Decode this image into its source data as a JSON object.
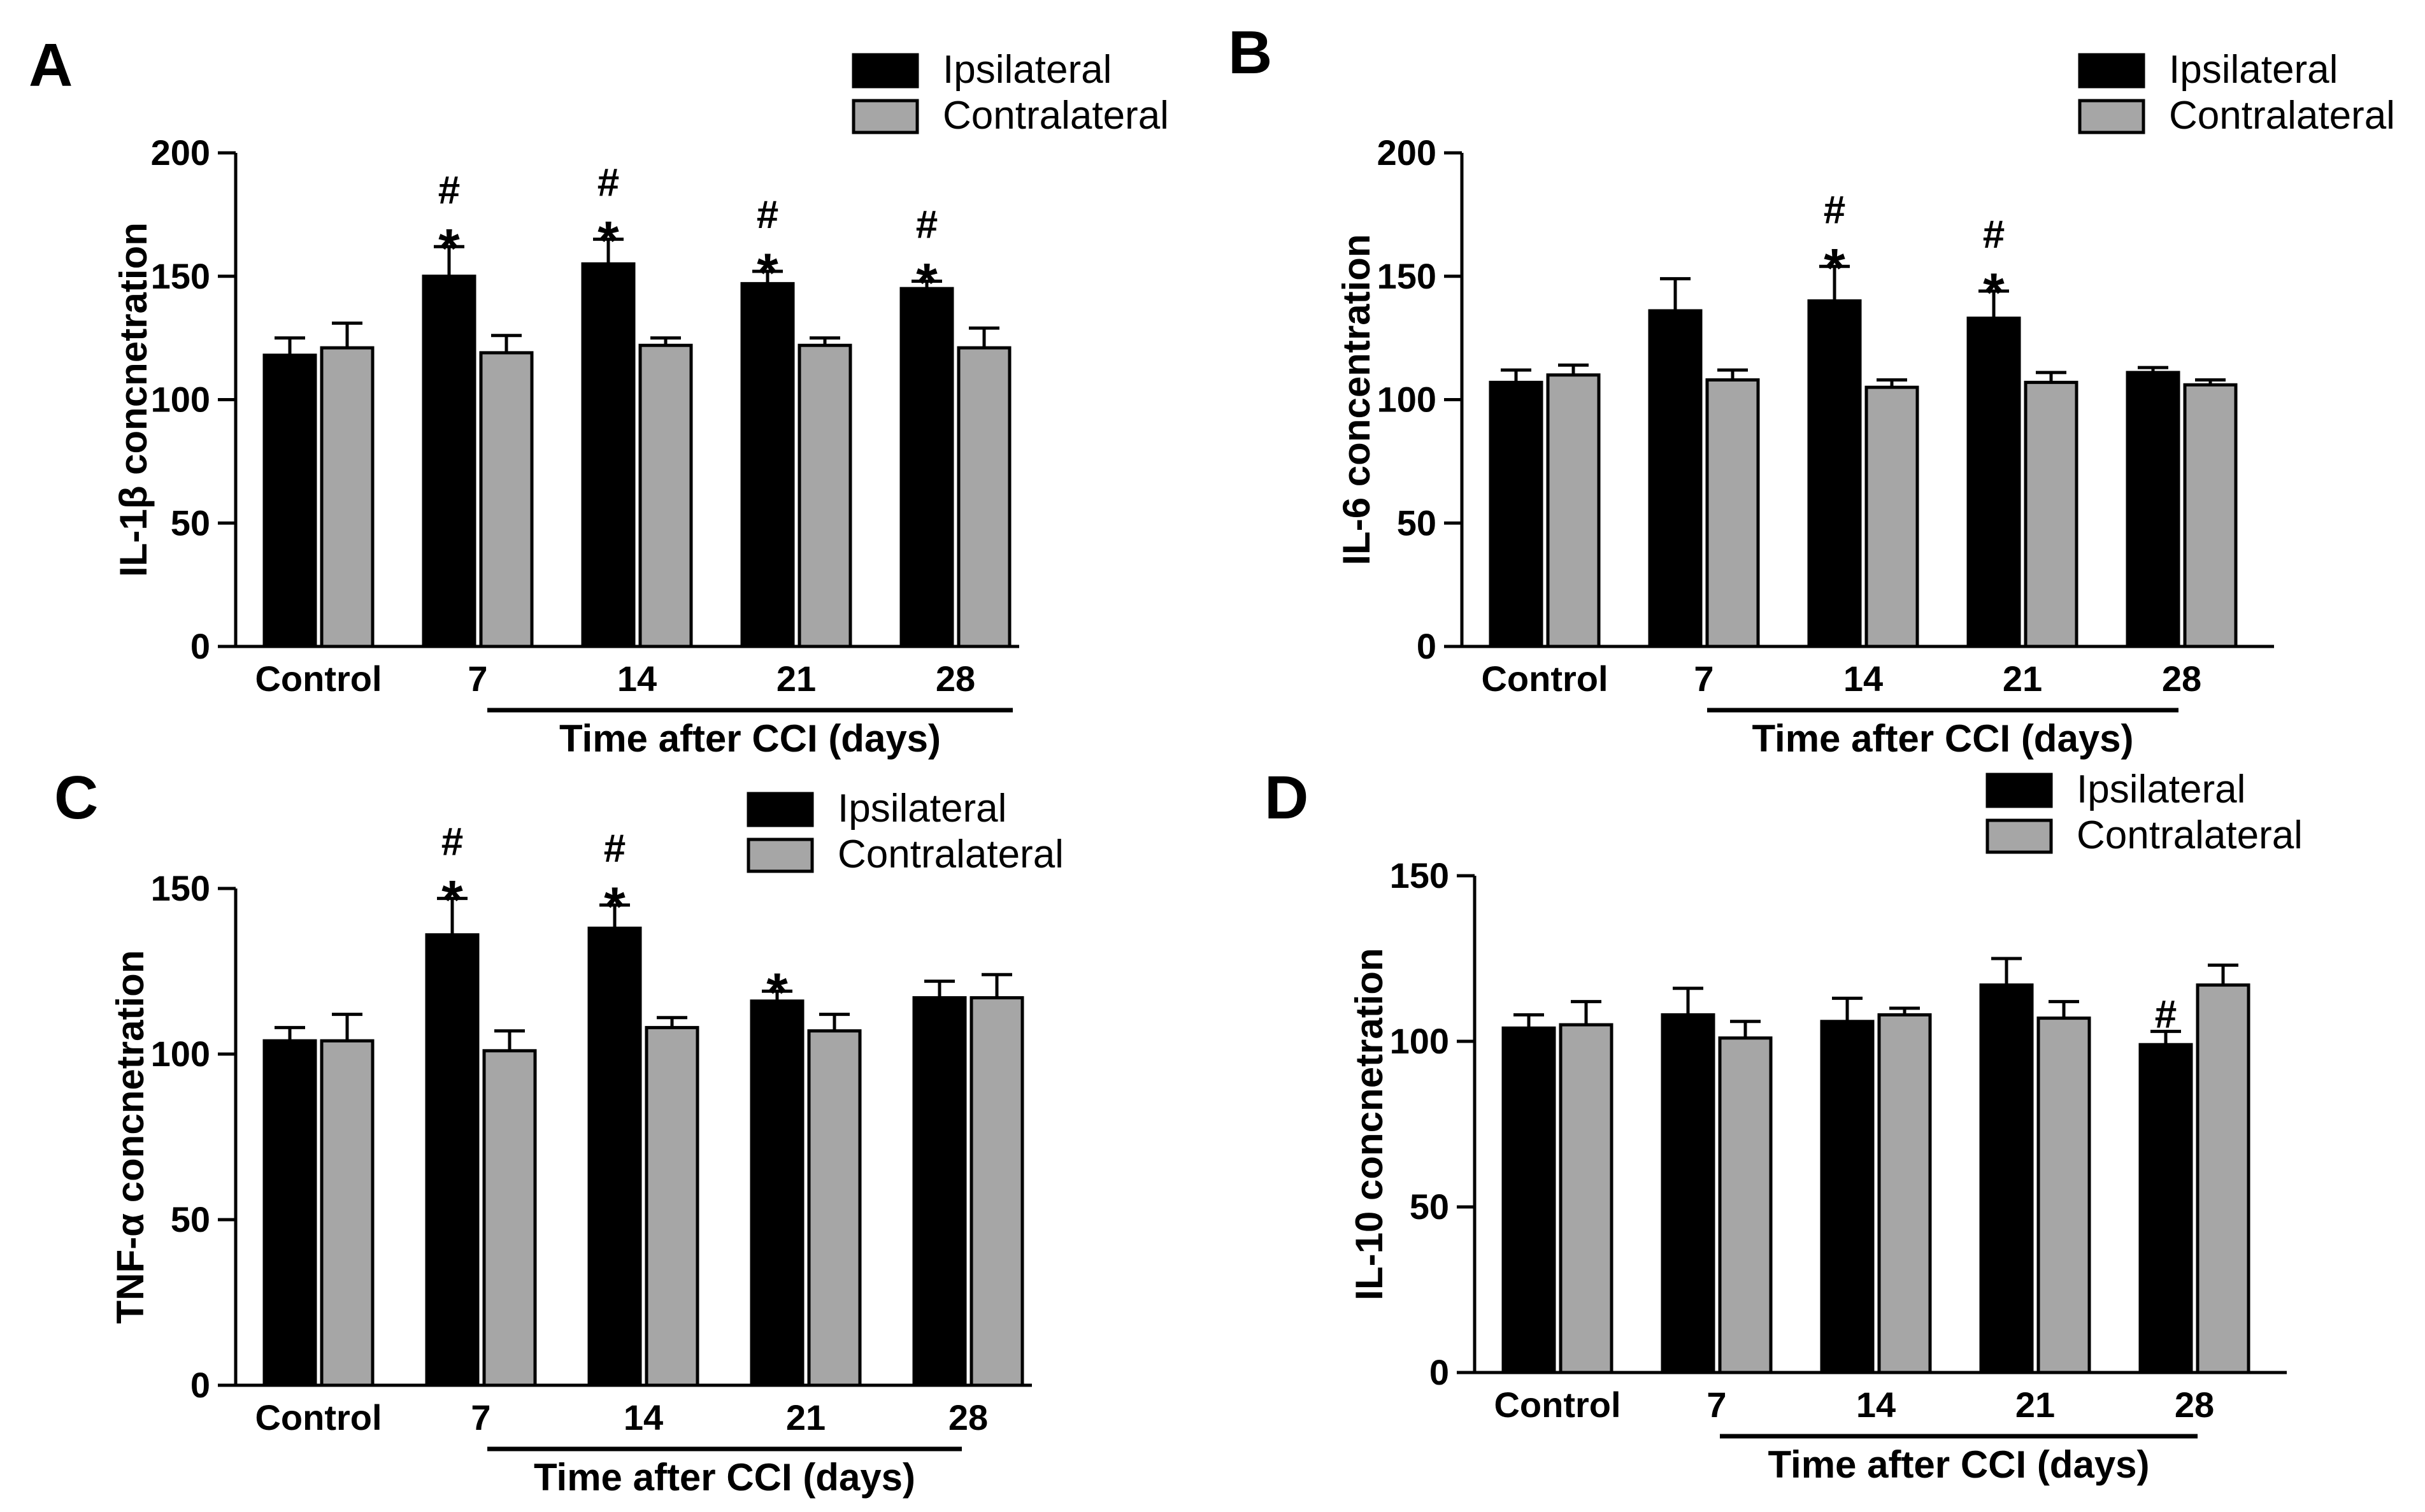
{
  "chart_data": [
    {
      "panel": "A",
      "type": "bar",
      "ylabel": "IL-1β concnetration",
      "xlabel": "Time after CCI (days)",
      "categories": [
        "Control",
        "7",
        "14",
        "21",
        "28"
      ],
      "ylim": [
        0,
        200
      ],
      "yticks": [
        0,
        50,
        100,
        150,
        200
      ],
      "legend": [
        "Ipsilateral",
        "Contralateral"
      ],
      "series": [
        {
          "name": "Ipsilateral",
          "color": "#000000",
          "values": [
            118,
            150,
            155,
            147,
            145
          ],
          "errors": [
            7,
            12,
            10,
            5,
            3
          ]
        },
        {
          "name": "Contralateral",
          "color": "#a6a6a6",
          "values": [
            121,
            119,
            122,
            122,
            121
          ],
          "errors": [
            10,
            7,
            3,
            3,
            8
          ]
        }
      ],
      "annotations": [
        {
          "category": "7",
          "series": "Ipsilateral",
          "marks": [
            "#",
            "*"
          ]
        },
        {
          "category": "14",
          "series": "Ipsilateral",
          "marks": [
            "#",
            "*"
          ]
        },
        {
          "category": "21",
          "series": "Ipsilateral",
          "marks": [
            "#",
            "*"
          ]
        },
        {
          "category": "28",
          "series": "Ipsilateral",
          "marks": [
            "#",
            "*"
          ]
        }
      ]
    },
    {
      "panel": "B",
      "type": "bar",
      "ylabel": "IL-6 concentration",
      "xlabel": "Time after CCI (days)",
      "categories": [
        "Control",
        "7",
        "14",
        "21",
        "28"
      ],
      "ylim": [
        0,
        200
      ],
      "yticks": [
        0,
        50,
        100,
        150,
        200
      ],
      "legend": [
        "Ipsilateral",
        "Contralateral"
      ],
      "series": [
        {
          "name": "Ipsilateral",
          "color": "#000000",
          "values": [
            107,
            136,
            140,
            133,
            111
          ],
          "errors": [
            5,
            13,
            14,
            11,
            2
          ]
        },
        {
          "name": "Contralateral",
          "color": "#a6a6a6",
          "values": [
            110,
            108,
            105,
            107,
            106
          ],
          "errors": [
            4,
            4,
            3,
            4,
            2
          ]
        }
      ],
      "annotations": [
        {
          "category": "14",
          "series": "Ipsilateral",
          "marks": [
            "#",
            "*"
          ]
        },
        {
          "category": "21",
          "series": "Ipsilateral",
          "marks": [
            "#",
            "*"
          ]
        }
      ]
    },
    {
      "panel": "C",
      "type": "bar",
      "ylabel": "TNF-α concnetration",
      "xlabel": "Time after CCI (days)",
      "categories": [
        "Control",
        "7",
        "14",
        "21",
        "28"
      ],
      "ylim": [
        0,
        150
      ],
      "yticks": [
        0,
        50,
        100,
        150
      ],
      "legend": [
        "Ipsilateral",
        "Contralateral"
      ],
      "series": [
        {
          "name": "Ipsilateral",
          "color": "#000000",
          "values": [
            104,
            136,
            138,
            116,
            117
          ],
          "errors": [
            4,
            11,
            7,
            3,
            5
          ]
        },
        {
          "name": "Contralateral",
          "color": "#a6a6a6",
          "values": [
            104,
            101,
            108,
            107,
            117
          ],
          "errors": [
            8,
            6,
            3,
            5,
            7
          ]
        }
      ],
      "annotations": [
        {
          "category": "7",
          "series": "Ipsilateral",
          "marks": [
            "#",
            "*"
          ]
        },
        {
          "category": "14",
          "series": "Ipsilateral",
          "marks": [
            "#",
            "*"
          ]
        },
        {
          "category": "21",
          "series": "Ipsilateral",
          "marks": [
            "*"
          ]
        }
      ]
    },
    {
      "panel": "D",
      "type": "bar",
      "ylabel": "IL-10 concnetration",
      "xlabel": "Time after CCI (days)",
      "categories": [
        "Control",
        "7",
        "14",
        "21",
        "28"
      ],
      "ylim": [
        0,
        150
      ],
      "yticks": [
        0,
        50,
        100,
        150
      ],
      "legend": [
        "Ipsilateral",
        "Contralateral"
      ],
      "series": [
        {
          "name": "Ipsilateral",
          "color": "#000000",
          "values": [
            104,
            108,
            106,
            117,
            99
          ],
          "errors": [
            4,
            8,
            7,
            8,
            4
          ]
        },
        {
          "name": "Contralateral",
          "color": "#a6a6a6",
          "values": [
            105,
            101,
            108,
            107,
            117
          ],
          "errors": [
            7,
            5,
            2,
            5,
            6
          ]
        }
      ],
      "annotations": [
        {
          "category": "28",
          "series": "Ipsilateral",
          "marks": [
            "#"
          ]
        }
      ]
    }
  ]
}
